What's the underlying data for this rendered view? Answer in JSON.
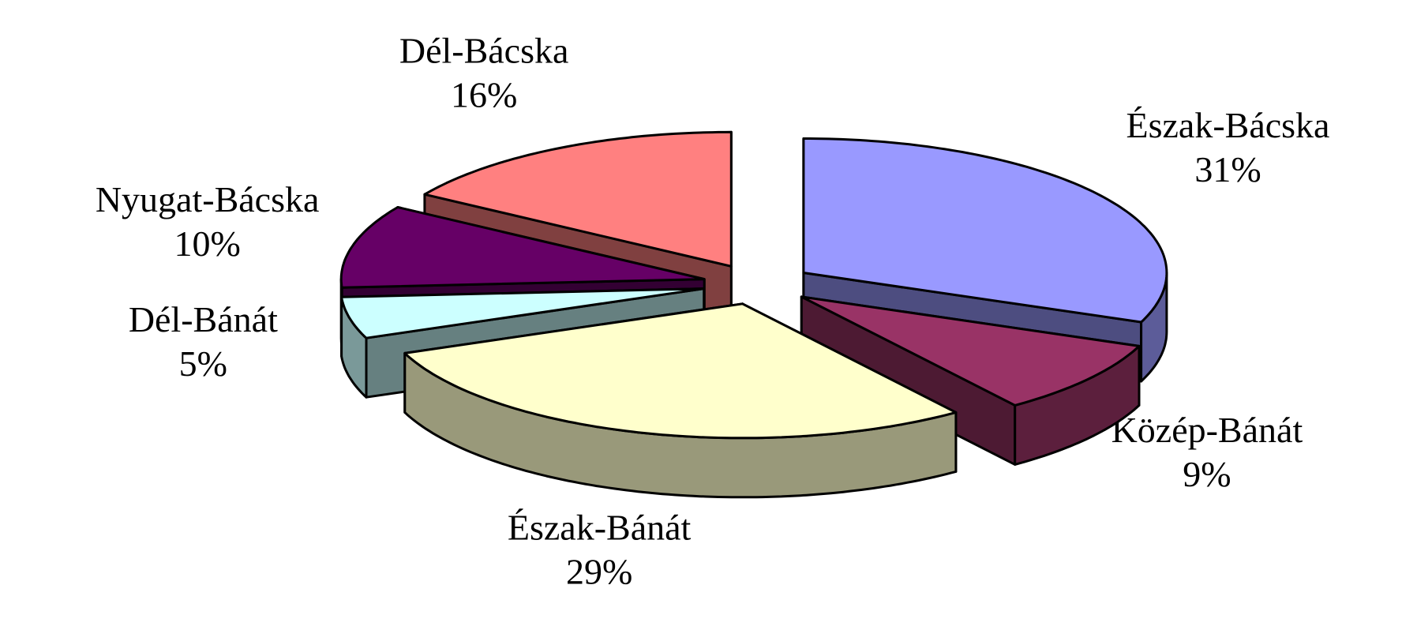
{
  "chart_data": {
    "type": "pie3d",
    "categories": [
      "Észak-Bácska",
      "Közép-Bánát",
      "Észak-Bánát",
      "Dél-Bánát",
      "Nyugat-Bácska",
      "Dél-Bácska"
    ],
    "values": [
      31,
      9,
      29,
      5,
      10,
      16
    ],
    "value_labels": [
      "31%",
      "9%",
      "29%",
      "5%",
      "10%",
      "16%"
    ],
    "colors": [
      "#9999ff",
      "#993366",
      "#ffffcc",
      "#ccffff",
      "#660066",
      "#ff8080"
    ]
  }
}
